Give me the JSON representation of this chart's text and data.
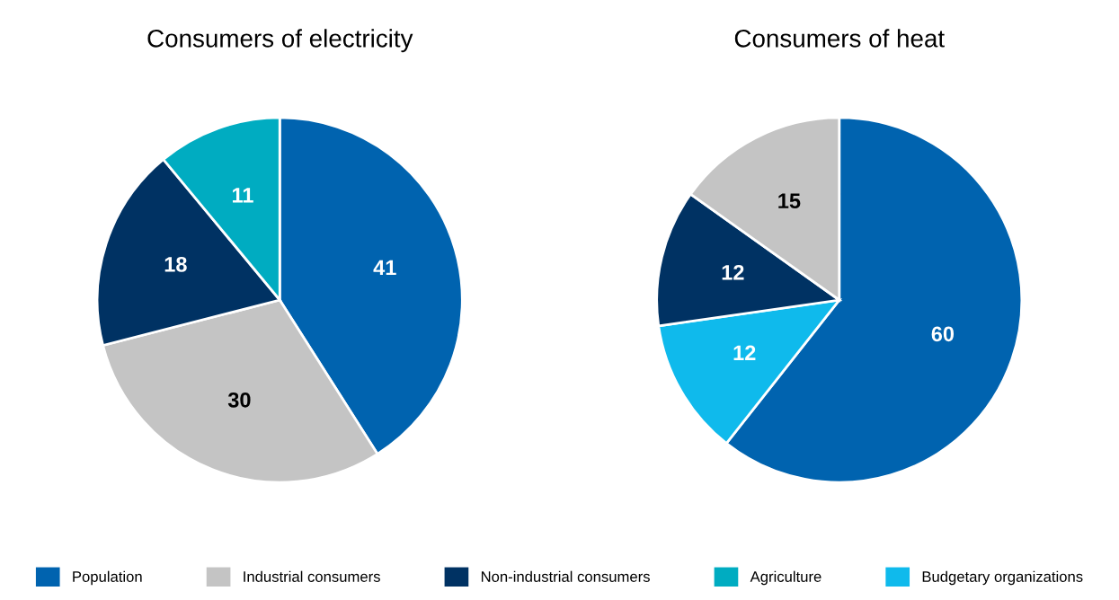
{
  "chart_data": [
    {
      "type": "pie",
      "title": "Consumers of electricity",
      "categories": [
        "Population",
        "Industrial consumers",
        "Non-industrial consumers",
        "Agriculture"
      ],
      "values": [
        41,
        30,
        18,
        11
      ],
      "colors": [
        "#0063af",
        "#c4c4c4",
        "#003263",
        "#00acc1"
      ],
      "data_labels": true,
      "legend": "bottom"
    },
    {
      "type": "pie",
      "title": "Consumers of heat",
      "categories": [
        null,
        "Budgetary organizations",
        null,
        null
      ],
      "values": [
        60,
        12,
        12,
        15
      ],
      "colors": [
        "#0063af",
        "#0fbaec",
        "#003263",
        "#c4c4c4"
      ],
      "data_labels": true,
      "legend": "bottom"
    }
  ]
}
